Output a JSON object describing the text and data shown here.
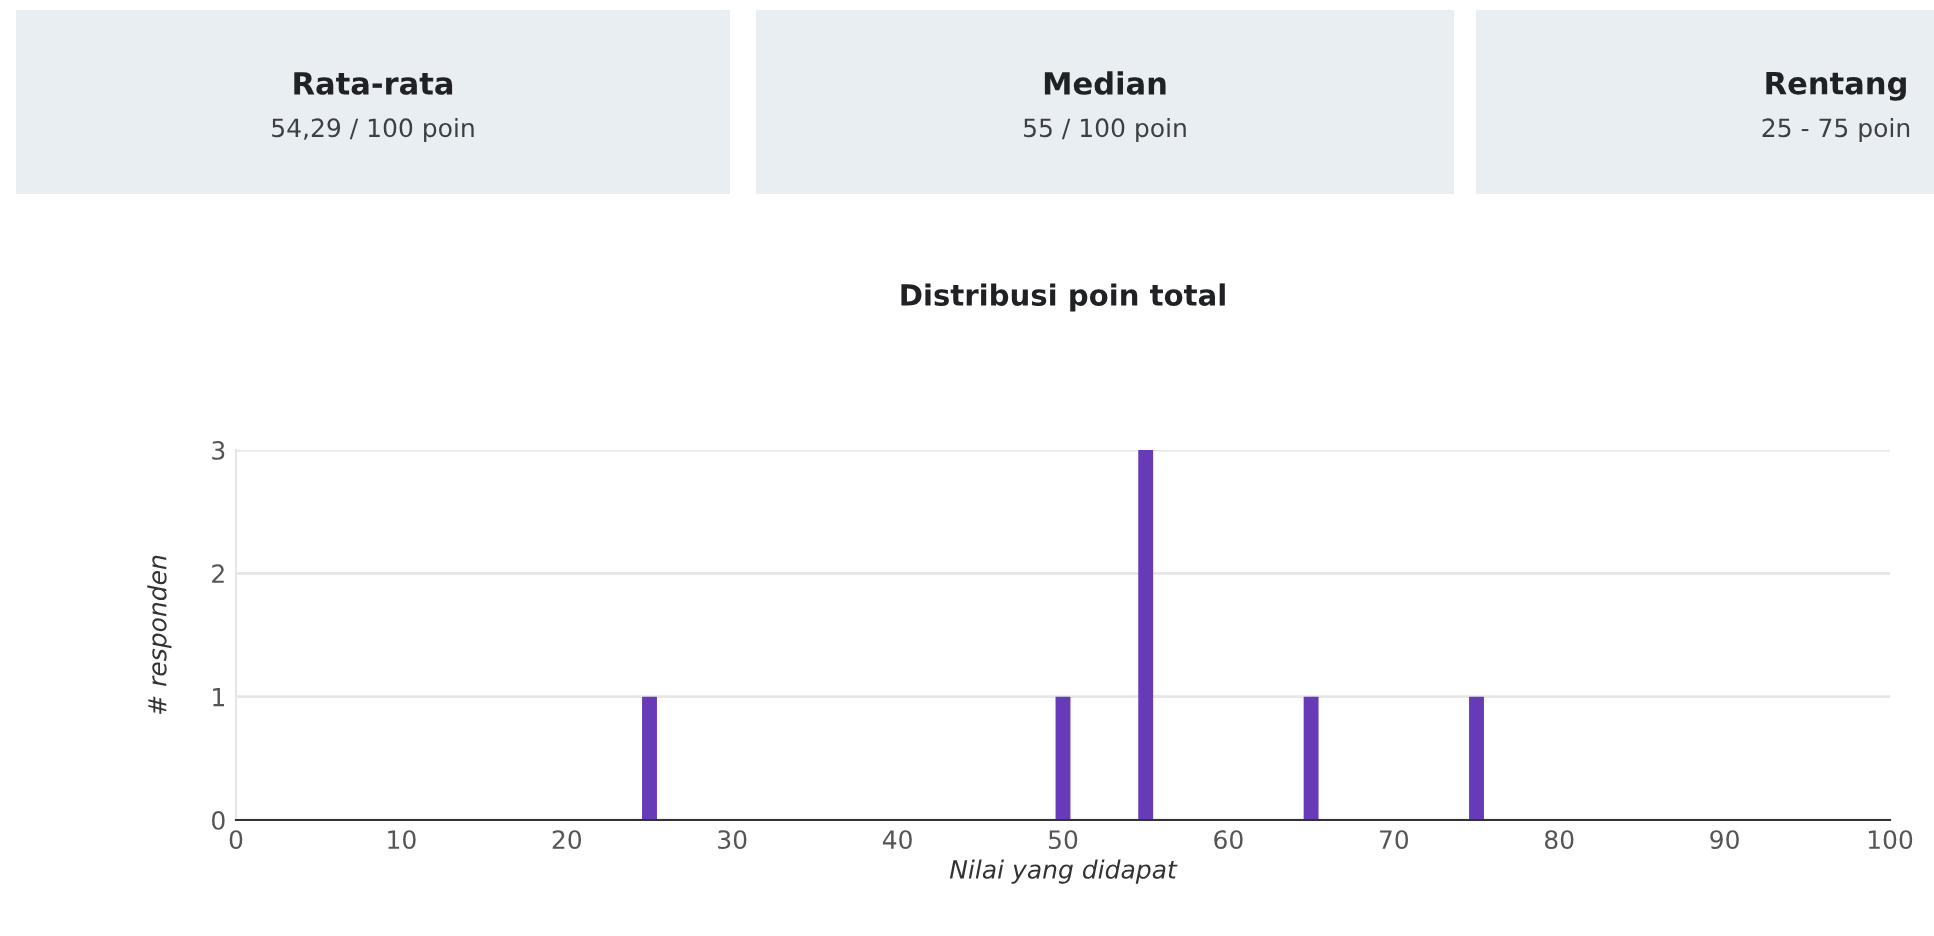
{
  "chart_data": [
    {
      "type": "other",
      "annotations": [
        "Rata-rata",
        "54,29 / 100 poin",
        "Median",
        "55 / 100 poin",
        "Rentang",
        "25 - 75 poin"
      ]
    },
    {
      "type": "bar",
      "title": "Distribusi poin total",
      "xlabel": "Nilai yang didapat",
      "ylabel": "# responden",
      "x": [
        25,
        50,
        55,
        65,
        75
      ],
      "values": [
        1,
        1,
        3,
        1,
        1
      ],
      "color": "#673ab7",
      "xlim": [
        0,
        100
      ],
      "xticks": [
        0,
        10,
        20,
        30,
        40,
        50,
        60,
        70,
        80,
        90,
        100
      ],
      "ylim": [
        0,
        3
      ],
      "yticks": [
        0,
        1,
        2,
        3
      ],
      "grid": "y",
      "legend": false
    }
  ]
}
